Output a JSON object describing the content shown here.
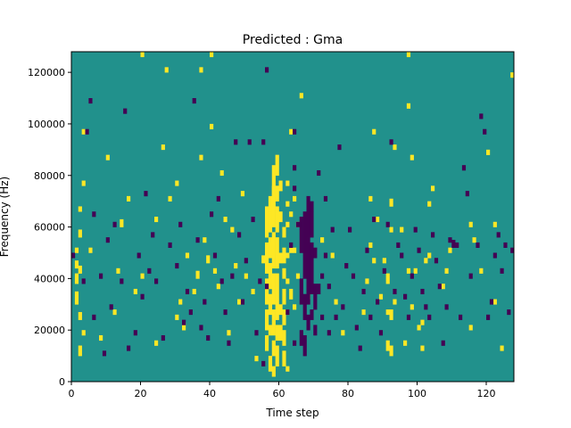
{
  "chart_data": {
    "type": "heatmap",
    "title": "Predicted : Gma",
    "xlabel": "Time step",
    "ylabel": "Frequency (Hz)",
    "xlim": [
      0,
      128
    ],
    "ylim": [
      0,
      128000
    ],
    "x_ticks": [
      0,
      20,
      40,
      60,
      80,
      100,
      120
    ],
    "y_ticks": [
      0,
      20000,
      40000,
      60000,
      80000,
      100000,
      120000
    ],
    "colormap": {
      "background": "#21918c",
      "high": "#fde725",
      "low": "#440154"
    },
    "n_time_steps": 128,
    "n_frequency_bins": 128,
    "bin_hz": 1000,
    "cells": {
      "high": [
        [
          1,
          30,
          5
        ],
        [
          1,
          38,
          4
        ],
        [
          1,
          44,
          3
        ],
        [
          1,
          50,
          2
        ],
        [
          2,
          10,
          4
        ],
        [
          2,
          24,
          3
        ],
        [
          2,
          42,
          3
        ],
        [
          2,
          56,
          3
        ],
        [
          2,
          66,
          2
        ],
        [
          3,
          18,
          2
        ],
        [
          3,
          76,
          2
        ],
        [
          3,
          96,
          2
        ],
        [
          5,
          50,
          2
        ],
        [
          8,
          16,
          2
        ],
        [
          10,
          86,
          2
        ],
        [
          12,
          26,
          2
        ],
        [
          13,
          42,
          2
        ],
        [
          14,
          60,
          3
        ],
        [
          16,
          70,
          2
        ],
        [
          18,
          34,
          2
        ],
        [
          20,
          40,
          2
        ],
        [
          20,
          126,
          2
        ],
        [
          24,
          14,
          2
        ],
        [
          24,
          62,
          2
        ],
        [
          26,
          90,
          2
        ],
        [
          27,
          120,
          2
        ],
        [
          28,
          70,
          2
        ],
        [
          30,
          24,
          2
        ],
        [
          30,
          76,
          2
        ],
        [
          31,
          30,
          2
        ],
        [
          32,
          20,
          3
        ],
        [
          33,
          48,
          2
        ],
        [
          35,
          34,
          2
        ],
        [
          36,
          40,
          3
        ],
        [
          37,
          86,
          2
        ],
        [
          37,
          120,
          2
        ],
        [
          38,
          54,
          2
        ],
        [
          39,
          46,
          3
        ],
        [
          40,
          98,
          2
        ],
        [
          40,
          126,
          2
        ],
        [
          41,
          42,
          2
        ],
        [
          42,
          36,
          2
        ],
        [
          43,
          80,
          2
        ],
        [
          44,
          62,
          2
        ],
        [
          45,
          18,
          2
        ],
        [
          46,
          58,
          2
        ],
        [
          47,
          44,
          2
        ],
        [
          48,
          30,
          2
        ],
        [
          49,
          72,
          2
        ],
        [
          50,
          40,
          2
        ],
        [
          52,
          34,
          2
        ],
        [
          53,
          8,
          2
        ],
        [
          55,
          46,
          3
        ],
        [
          56,
          12,
          6
        ],
        [
          56,
          20,
          8
        ],
        [
          56,
          30,
          10
        ],
        [
          56,
          42,
          12
        ],
        [
          56,
          56,
          12
        ],
        [
          57,
          4,
          6
        ],
        [
          57,
          18,
          4
        ],
        [
          57,
          26,
          8
        ],
        [
          57,
          36,
          10
        ],
        [
          57,
          48,
          8
        ],
        [
          57,
          58,
          8
        ],
        [
          57,
          66,
          6
        ],
        [
          58,
          2,
          4
        ],
        [
          58,
          10,
          6
        ],
        [
          58,
          18,
          10
        ],
        [
          58,
          30,
          12
        ],
        [
          58,
          44,
          14
        ],
        [
          58,
          60,
          16
        ],
        [
          58,
          72,
          12
        ],
        [
          59,
          6,
          8
        ],
        [
          59,
          16,
          6
        ],
        [
          59,
          24,
          8
        ],
        [
          59,
          32,
          10
        ],
        [
          59,
          44,
          12
        ],
        [
          59,
          58,
          10
        ],
        [
          59,
          70,
          6
        ],
        [
          59,
          80,
          8
        ],
        [
          60,
          16,
          6
        ],
        [
          60,
          26,
          4
        ],
        [
          60,
          46,
          4
        ],
        [
          60,
          62,
          4
        ],
        [
          60,
          74,
          4
        ],
        [
          61,
          6,
          6
        ],
        [
          61,
          14,
          6
        ],
        [
          61,
          22,
          6
        ],
        [
          61,
          30,
          6
        ],
        [
          61,
          40,
          4
        ],
        [
          61,
          46,
          6
        ],
        [
          61,
          56,
          4
        ],
        [
          62,
          4,
          2
        ],
        [
          62,
          26,
          2
        ],
        [
          62,
          38,
          2
        ],
        [
          62,
          48,
          2
        ],
        [
          62,
          60,
          2
        ],
        [
          62,
          68,
          2
        ],
        [
          62,
          76,
          2
        ],
        [
          63,
          32,
          4
        ],
        [
          63,
          50,
          2
        ],
        [
          63,
          64,
          2
        ],
        [
          63,
          96,
          2
        ],
        [
          64,
          28,
          2
        ],
        [
          64,
          50,
          2
        ],
        [
          64,
          70,
          2
        ],
        [
          65,
          40,
          2
        ],
        [
          65,
          60,
          2
        ],
        [
          66,
          110,
          2
        ],
        [
          68,
          32,
          2
        ],
        [
          72,
          54,
          2
        ],
        [
          75,
          48,
          2
        ],
        [
          76,
          30,
          2
        ],
        [
          78,
          18,
          2
        ],
        [
          84,
          26,
          2
        ],
        [
          85,
          38,
          2
        ],
        [
          86,
          52,
          2
        ],
        [
          86,
          70,
          2
        ],
        [
          87,
          46,
          2
        ],
        [
          87,
          96,
          2
        ],
        [
          88,
          62,
          2
        ],
        [
          89,
          32,
          2
        ],
        [
          90,
          46,
          2
        ],
        [
          91,
          38,
          4
        ],
        [
          91,
          26,
          2
        ],
        [
          91,
          12,
          4
        ],
        [
          92,
          10,
          4
        ],
        [
          92,
          24,
          4
        ],
        [
          92,
          58,
          2
        ],
        [
          92,
          68,
          3
        ],
        [
          93,
          30,
          2
        ],
        [
          93,
          90,
          2
        ],
        [
          95,
          58,
          2
        ],
        [
          96,
          14,
          2
        ],
        [
          97,
          42,
          2
        ],
        [
          97,
          106,
          2
        ],
        [
          97,
          126,
          2
        ],
        [
          98,
          28,
          2
        ],
        [
          98,
          86,
          2
        ],
        [
          99,
          42,
          2
        ],
        [
          100,
          20,
          2
        ],
        [
          101,
          12,
          2
        ],
        [
          101,
          22,
          2
        ],
        [
          102,
          46,
          2
        ],
        [
          103,
          48,
          2
        ],
        [
          103,
          68,
          2
        ],
        [
          104,
          74,
          2
        ],
        [
          107,
          36,
          2
        ],
        [
          108,
          42,
          2
        ],
        [
          109,
          50,
          2
        ],
        [
          115,
          60,
          2
        ],
        [
          115,
          20,
          2
        ],
        [
          116,
          54,
          2
        ],
        [
          118,
          42,
          2
        ],
        [
          120,
          88,
          2
        ],
        [
          122,
          30,
          2
        ],
        [
          122,
          60,
          2
        ],
        [
          124,
          12,
          2
        ],
        [
          127,
          118,
          2
        ]
      ],
      "low": [
        [
          0,
          48,
          2
        ],
        [
          3,
          38,
          2
        ],
        [
          4,
          96,
          2
        ],
        [
          5,
          108,
          2
        ],
        [
          6,
          64,
          2
        ],
        [
          6,
          24,
          2
        ],
        [
          8,
          40,
          2
        ],
        [
          9,
          10,
          2
        ],
        [
          10,
          54,
          2
        ],
        [
          11,
          28,
          2
        ],
        [
          12,
          60,
          2
        ],
        [
          14,
          38,
          2
        ],
        [
          15,
          104,
          2
        ],
        [
          16,
          12,
          2
        ],
        [
          18,
          18,
          2
        ],
        [
          19,
          48,
          2
        ],
        [
          20,
          32,
          2
        ],
        [
          21,
          72,
          2
        ],
        [
          22,
          42,
          2
        ],
        [
          23,
          56,
          2
        ],
        [
          24,
          38,
          2
        ],
        [
          26,
          16,
          2
        ],
        [
          28,
          52,
          2
        ],
        [
          30,
          44,
          2
        ],
        [
          31,
          60,
          2
        ],
        [
          32,
          22,
          2
        ],
        [
          33,
          34,
          2
        ],
        [
          34,
          26,
          2
        ],
        [
          35,
          108,
          2
        ],
        [
          36,
          54,
          2
        ],
        [
          37,
          20,
          2
        ],
        [
          38,
          30,
          2
        ],
        [
          39,
          16,
          2
        ],
        [
          40,
          64,
          2
        ],
        [
          41,
          48,
          2
        ],
        [
          42,
          70,
          2
        ],
        [
          43,
          38,
          2
        ],
        [
          44,
          26,
          2
        ],
        [
          45,
          14,
          2
        ],
        [
          46,
          40,
          2
        ],
        [
          47,
          92,
          2
        ],
        [
          48,
          56,
          2
        ],
        [
          49,
          30,
          2
        ],
        [
          50,
          46,
          2
        ],
        [
          51,
          92,
          2
        ],
        [
          52,
          62,
          2
        ],
        [
          53,
          18,
          2
        ],
        [
          54,
          38,
          2
        ],
        [
          55,
          6,
          2
        ],
        [
          55,
          92,
          2
        ],
        [
          56,
          36,
          2
        ],
        [
          56,
          120,
          2
        ],
        [
          62,
          26,
          2
        ],
        [
          63,
          52,
          2
        ],
        [
          64,
          14,
          2
        ],
        [
          64,
          74,
          2
        ],
        [
          64,
          82,
          2
        ],
        [
          64,
          96,
          2
        ],
        [
          65,
          60,
          2
        ],
        [
          66,
          50,
          14
        ],
        [
          66,
          30,
          10
        ],
        [
          66,
          14,
          6
        ],
        [
          67,
          40,
          26
        ],
        [
          67,
          24,
          10
        ],
        [
          67,
          10,
          8
        ],
        [
          68,
          30,
          26
        ],
        [
          68,
          56,
          16
        ],
        [
          68,
          20,
          6
        ],
        [
          69,
          34,
          20
        ],
        [
          69,
          56,
          10
        ],
        [
          69,
          66,
          4
        ],
        [
          69,
          24,
          4
        ],
        [
          70,
          28,
          10
        ],
        [
          70,
          48,
          4
        ],
        [
          70,
          18,
          4
        ],
        [
          71,
          34,
          4
        ],
        [
          71,
          80,
          2
        ],
        [
          72,
          40,
          2
        ],
        [
          72,
          24,
          2
        ],
        [
          73,
          48,
          2
        ],
        [
          73,
          70,
          2
        ],
        [
          74,
          18,
          2
        ],
        [
          74,
          36,
          2
        ],
        [
          75,
          58,
          2
        ],
        [
          76,
          24,
          2
        ],
        [
          77,
          90,
          2
        ],
        [
          78,
          28,
          2
        ],
        [
          79,
          44,
          2
        ],
        [
          80,
          58,
          2
        ],
        [
          81,
          40,
          2
        ],
        [
          82,
          20,
          2
        ],
        [
          83,
          12,
          2
        ],
        [
          84,
          34,
          2
        ],
        [
          85,
          50,
          2
        ],
        [
          86,
          24,
          2
        ],
        [
          87,
          62,
          2
        ],
        [
          88,
          30,
          2
        ],
        [
          89,
          18,
          2
        ],
        [
          90,
          42,
          2
        ],
        [
          91,
          60,
          2
        ],
        [
          92,
          92,
          2
        ],
        [
          93,
          34,
          2
        ],
        [
          94,
          52,
          2
        ],
        [
          95,
          48,
          2
        ],
        [
          96,
          32,
          2
        ],
        [
          97,
          24,
          2
        ],
        [
          98,
          40,
          2
        ],
        [
          99,
          58,
          2
        ],
        [
          100,
          50,
          2
        ],
        [
          101,
          34,
          2
        ],
        [
          102,
          28,
          2
        ],
        [
          103,
          24,
          2
        ],
        [
          104,
          56,
          2
        ],
        [
          105,
          46,
          2
        ],
        [
          106,
          36,
          2
        ],
        [
          107,
          14,
          2
        ],
        [
          108,
          28,
          2
        ],
        [
          109,
          54,
          2
        ],
        [
          110,
          52,
          3
        ],
        [
          111,
          52,
          2
        ],
        [
          112,
          24,
          2
        ],
        [
          113,
          82,
          2
        ],
        [
          114,
          72,
          2
        ],
        [
          115,
          40,
          2
        ],
        [
          117,
          52,
          2
        ],
        [
          118,
          102,
          2
        ],
        [
          119,
          96,
          2
        ],
        [
          120,
          24,
          2
        ],
        [
          121,
          30,
          2
        ],
        [
          122,
          48,
          2
        ],
        [
          123,
          56,
          2
        ],
        [
          124,
          42,
          2
        ],
        [
          125,
          52,
          2
        ],
        [
          126,
          26,
          2
        ],
        [
          127,
          50,
          2
        ]
      ]
    }
  }
}
